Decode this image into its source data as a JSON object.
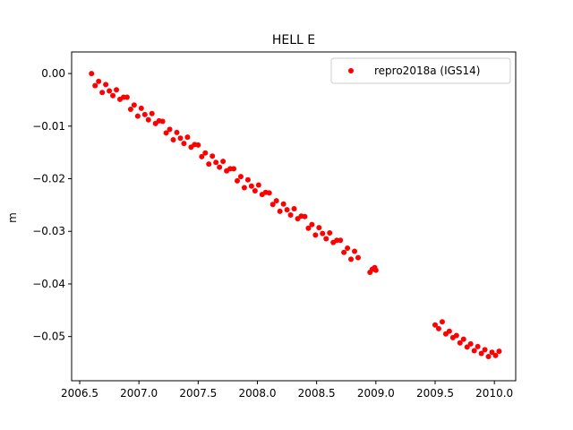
{
  "chart_data": {
    "type": "scatter",
    "title": "HELL E",
    "y_label": "m",
    "xlim": [
      2006.432,
      2010.18
    ],
    "ylim": [
      -0.0584,
      0.0041
    ],
    "xticks": [
      2006.5,
      {
        "value": 2007.0,
        "label": "2007.0"
      },
      2007.5,
      {
        "value": 2008.0,
        "label": "2008.0"
      },
      2008.5,
      {
        "value": 2009.0,
        "label": "2009.0"
      },
      2009.5,
      {
        "value": 2010.0,
        "label": "2010.0"
      }
    ],
    "yticks": [
      {
        "value": 0.0,
        "label": "0.00"
      },
      {
        "value": -0.01,
        "label": "−0.01"
      },
      {
        "value": -0.02,
        "label": "−0.02"
      },
      {
        "value": -0.03,
        "label": "−0.03"
      },
      {
        "value": -0.04,
        "label": "−0.04"
      },
      {
        "value": -0.05,
        "label": "−0.05"
      }
    ],
    "grid": false,
    "legend": "upper right",
    "series": [
      {
        "name": "repro2018a (IGS14)",
        "color": "#ff0000",
        "x": [
          2006.6,
          2006.63,
          2006.66,
          2006.69,
          2006.72,
          2006.75,
          2006.78,
          2006.81,
          2006.84,
          2006.87,
          2006.9,
          2006.93,
          2006.96,
          2006.99,
          2007.02,
          2007.05,
          2007.08,
          2007.11,
          2007.14,
          2007.17,
          2007.2,
          2007.23,
          2007.26,
          2007.29,
          2007.32,
          2007.35,
          2007.38,
          2007.41,
          2007.44,
          2007.47,
          2007.5,
          2007.53,
          2007.56,
          2007.59,
          2007.62,
          2007.65,
          2007.68,
          2007.71,
          2007.74,
          2007.77,
          2007.8,
          2007.83,
          2007.86,
          2007.89,
          2007.92,
          2007.95,
          2007.98,
          2008.01,
          2008.04,
          2008.07,
          2008.1,
          2008.13,
          2008.16,
          2008.19,
          2008.22,
          2008.25,
          2008.28,
          2008.31,
          2008.34,
          2008.37,
          2008.4,
          2008.43,
          2008.46,
          2008.49,
          2008.52,
          2008.55,
          2008.58,
          2008.61,
          2008.64,
          2008.67,
          2008.7,
          2008.73,
          2008.76,
          2008.79,
          2008.82,
          2008.85,
          2008.95,
          2008.97,
          2008.99,
          2009.0,
          2009.5,
          2009.53,
          2009.56,
          2009.59,
          2009.62,
          2009.65,
          2009.68,
          2009.71,
          2009.74,
          2009.77,
          2009.8,
          2009.83,
          2009.86,
          2009.89,
          2009.92,
          2009.95,
          2009.98,
          2010.01,
          2010.04
        ],
        "values": [
          0.0,
          -0.0023,
          -0.0015,
          -0.0036,
          -0.0021,
          -0.0033,
          -0.0042,
          -0.0031,
          -0.0049,
          -0.0045,
          -0.0045,
          -0.0068,
          -0.006,
          -0.0081,
          -0.0066,
          -0.0078,
          -0.0088,
          -0.0076,
          -0.0095,
          -0.009,
          -0.0091,
          -0.0113,
          -0.0106,
          -0.0126,
          -0.0112,
          -0.0123,
          -0.0133,
          -0.0121,
          -0.014,
          -0.0135,
          -0.0136,
          -0.0158,
          -0.0151,
          -0.0172,
          -0.0157,
          -0.0169,
          -0.0178,
          -0.0167,
          -0.0185,
          -0.0181,
          -0.0181,
          -0.0204,
          -0.0196,
          -0.0217,
          -0.0202,
          -0.0214,
          -0.0223,
          -0.0212,
          -0.023,
          -0.0226,
          -0.0227,
          -0.0249,
          -0.0242,
          -0.0262,
          -0.0248,
          -0.0259,
          -0.0269,
          -0.0257,
          -0.0276,
          -0.0271,
          -0.0272,
          -0.0294,
          -0.0287,
          -0.0307,
          -0.0293,
          -0.0304,
          -0.0314,
          -0.0303,
          -0.0321,
          -0.0317,
          -0.0317,
          -0.034,
          -0.0332,
          -0.0353,
          -0.0338,
          -0.035,
          -0.0378,
          -0.0372,
          -0.0369,
          -0.0374,
          -0.0478,
          -0.0485,
          -0.0472,
          -0.0495,
          -0.049,
          -0.0502,
          -0.0498,
          -0.0512,
          -0.0505,
          -0.052,
          -0.0514,
          -0.0527,
          -0.0519,
          -0.0532,
          -0.0525,
          -0.0538,
          -0.053,
          -0.0536,
          -0.0528
        ]
      }
    ]
  }
}
